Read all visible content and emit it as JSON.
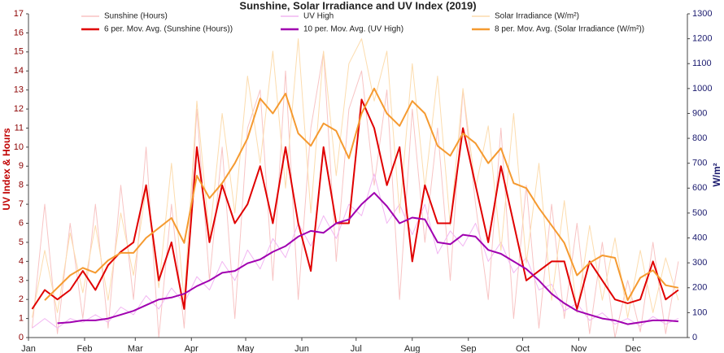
{
  "chart_data": {
    "type": "line",
    "title": "Sunshine, Solar Irradiance and UV Index (2019)",
    "ylabel": "UV Index & Hours",
    "y2label": "W/m²",
    "xlim": [
      1,
      365
    ],
    "xticks": [
      {
        "value": 1,
        "label": "Jan"
      },
      {
        "value": 32,
        "label": "Feb"
      },
      {
        "value": 60,
        "label": "Mar"
      },
      {
        "value": 91,
        "label": "Apr"
      },
      {
        "value": 121,
        "label": "May"
      },
      {
        "value": 152,
        "label": "Jun"
      },
      {
        "value": 182,
        "label": "Jul"
      },
      {
        "value": 213,
        "label": "Aug"
      },
      {
        "value": 244,
        "label": "Sep"
      },
      {
        "value": 274,
        "label": "Oct"
      },
      {
        "value": 305,
        "label": "Nov"
      },
      {
        "value": 335,
        "label": "Dec"
      }
    ],
    "ylim": [
      0,
      17
    ],
    "yticks": [
      0,
      1,
      2,
      3,
      4,
      5,
      6,
      7,
      8,
      9,
      10,
      11,
      12,
      13,
      14,
      15,
      16,
      17
    ],
    "y2lim": [
      0,
      1300
    ],
    "y2ticks": [
      0,
      100,
      200,
      300,
      400,
      500,
      600,
      700,
      800,
      900,
      1000,
      1100,
      1200,
      1300
    ],
    "grid": false,
    "x": [
      3,
      10,
      17,
      24,
      31,
      38,
      45,
      52,
      59,
      66,
      73,
      80,
      87,
      94,
      101,
      108,
      115,
      122,
      129,
      136,
      143,
      150,
      157,
      164,
      171,
      178,
      185,
      192,
      199,
      206,
      213,
      220,
      227,
      234,
      241,
      248,
      255,
      262,
      269,
      276,
      283,
      290,
      297,
      304,
      311,
      318,
      325,
      332,
      339,
      346,
      353,
      360
    ],
    "series": [
      {
        "name": "Sunshine (Hours)",
        "color": "#f8c4c4",
        "width": 1,
        "values": [
          0.5,
          7,
          0.2,
          6,
          1,
          7,
          0.5,
          8,
          2,
          10,
          0,
          7,
          0.5,
          12,
          3,
          10,
          1,
          11,
          13,
          3,
          14,
          2,
          11,
          15,
          4,
          12,
          14,
          8,
          13,
          2,
          12,
          5,
          11,
          3,
          13,
          7,
          2,
          11,
          1,
          8,
          0.5,
          7,
          1,
          6,
          0.2,
          5,
          0,
          3,
          0.3,
          5,
          0.2,
          4
        ]
      },
      {
        "name": "6 per. Mov. Avg. (Sunshine (Hours))",
        "color": "#e00000",
        "width": 2,
        "values": [
          1.5,
          2.5,
          2.0,
          2.5,
          3.5,
          2.5,
          3.8,
          4.5,
          5,
          8,
          3,
          5,
          1.5,
          10,
          5,
          8,
          6,
          7,
          9,
          6,
          10,
          6,
          3.5,
          10,
          6,
          6,
          12.5,
          11,
          8,
          10,
          4,
          8,
          6,
          6,
          11,
          8,
          5,
          9,
          6,
          3,
          3.5,
          4,
          4,
          1.5,
          4,
          3,
          2,
          1.8,
          2,
          4,
          2,
          2.5
        ]
      },
      {
        "name": "UV High",
        "color": "#f2b6f2",
        "width": 1,
        "values": [
          0.5,
          1,
          0.5,
          1,
          0.8,
          1.2,
          0.8,
          1.6,
          1.2,
          2.2,
          1.5,
          2.6,
          1.8,
          3.2,
          2.5,
          4,
          3,
          4.6,
          3.6,
          5.2,
          4.2,
          6,
          4.8,
          6.4,
          5.2,
          7,
          6.4,
          8.6,
          6,
          7,
          5.4,
          7,
          4.4,
          5.6,
          4.8,
          6,
          4,
          5,
          3.4,
          4.2,
          2.5,
          2.8,
          1.4,
          1.8,
          0.9,
          1.3,
          0.7,
          1,
          0.6,
          1.1,
          0.7,
          1
        ]
      },
      {
        "name": "10 per. Mov. Avg. (UV High)",
        "color": "#a000b0",
        "width": 2,
        "values": [
          null,
          null,
          0.75,
          0.8,
          0.9,
          0.9,
          1.0,
          1.2,
          1.4,
          1.7,
          2.0,
          2.1,
          2.3,
          2.7,
          3.0,
          3.4,
          3.5,
          3.9,
          4.1,
          4.5,
          4.8,
          5.3,
          5.6,
          5.5,
          6.0,
          6.2,
          7.0,
          7.6,
          6.9,
          6.0,
          6.3,
          6.2,
          5.0,
          4.9,
          5.4,
          5.3,
          4.6,
          4.4,
          4.0,
          3.6,
          3.0,
          2.3,
          1.8,
          1.4,
          1.2,
          1.0,
          0.9,
          0.7,
          0.8,
          0.9,
          0.9,
          0.85
        ]
      },
      {
        "name": "Solar Irradiance (W/m²)",
        "color": "#fcdcae",
        "width": 1,
        "axis": "y2",
        "values": [
          80,
          350,
          100,
          420,
          180,
          450,
          150,
          500,
          250,
          600,
          200,
          700,
          150,
          950,
          400,
          900,
          500,
          1050,
          700,
          1150,
          600,
          1200,
          500,
          1150,
          650,
          1100,
          1200,
          950,
          1150,
          500,
          1100,
          600,
          1050,
          450,
          1000,
          600,
          850,
          350,
          900,
          300,
          700,
          150,
          550,
          100,
          450,
          150,
          400,
          80,
          350,
          100,
          320,
          150
        ]
      },
      {
        "name": "8 per. Mov. Avg. (Solar Irradiance (W/m²))",
        "color": "#f59a30",
        "width": 2,
        "axis": "y2",
        "values": [
          null,
          150,
          200,
          250,
          280,
          260,
          310,
          340,
          340,
          400,
          440,
          480,
          380,
          650,
          560,
          620,
          700,
          800,
          960,
          900,
          980,
          820,
          770,
          860,
          830,
          720,
          900,
          1000,
          900,
          850,
          950,
          900,
          770,
          730,
          820,
          780,
          700,
          760,
          620,
          600,
          520,
          450,
          380,
          250,
          300,
          330,
          320,
          150,
          240,
          270,
          210,
          200
        ]
      }
    ]
  }
}
